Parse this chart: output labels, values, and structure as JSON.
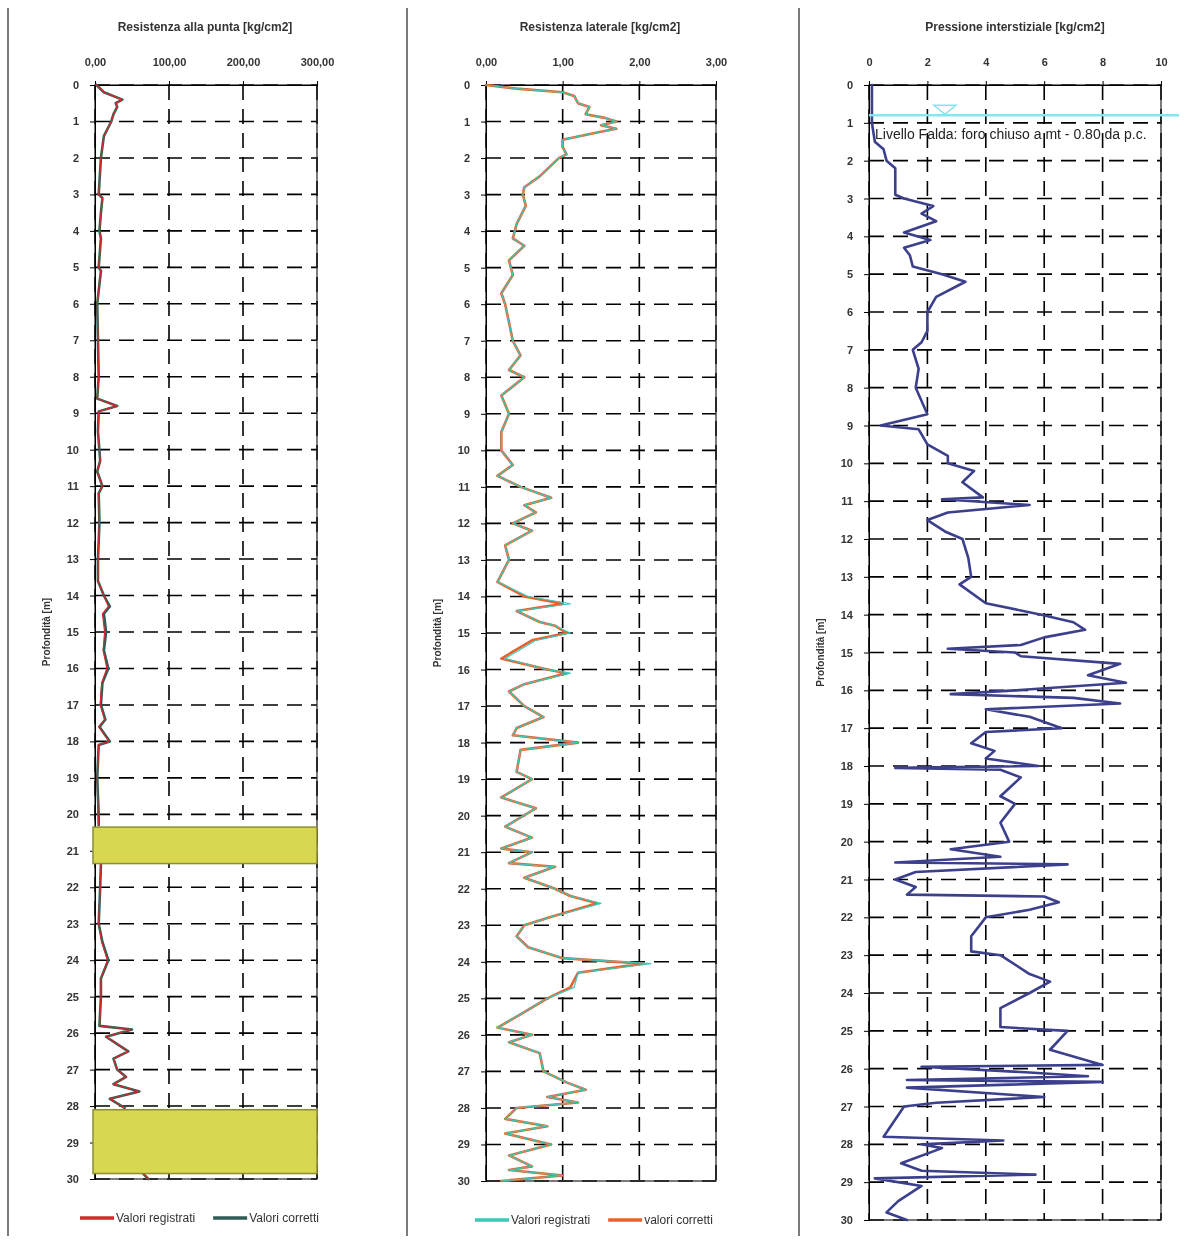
{
  "chart_data": [
    {
      "type": "line",
      "title": "Resistenza alla punta [kg/cm2]",
      "ylabel": "Profondità [m]",
      "xlim": [
        0,
        300
      ],
      "xticks": [
        {
          "value": 0,
          "label": "0,00"
        },
        {
          "value": 100,
          "label": "100,00"
        },
        {
          "value": 200,
          "label": "200,00"
        },
        {
          "value": 300,
          "label": "300,00"
        }
      ],
      "ylim": [
        30,
        0
      ],
      "yticks": [
        0,
        1,
        2,
        3,
        4,
        5,
        6,
        7,
        8,
        9,
        10,
        11,
        12,
        13,
        14,
        15,
        16,
        17,
        18,
        19,
        20,
        21,
        22,
        23,
        24,
        25,
        26,
        27,
        28,
        29,
        30
      ],
      "grid": true,
      "legend": "bottom",
      "marker": "none",
      "line_style": "solid",
      "bands": [
        {
          "axis": "y",
          "from": 20.35,
          "to": 21.35,
          "color": "#d8d850"
        },
        {
          "axis": "y",
          "from": 28.1,
          "to": 29.85,
          "color": "#d8d850"
        }
      ],
      "series": [
        {
          "name": "Valori registrati",
          "color": "#d42a2a",
          "x": [
            2,
            12,
            37,
            28,
            30,
            25,
            22,
            12,
            8,
            5,
            10,
            8,
            6,
            8,
            5,
            8,
            3,
            4,
            5,
            3,
            30,
            5,
            4,
            7,
            3,
            10,
            5,
            6,
            4,
            4,
            12,
            18,
            10,
            13,
            11,
            16,
            9,
            7,
            13,
            5,
            19,
            5,
            3,
            4,
            5,
            null,
            8,
            7,
            5,
            9,
            17,
            8,
            8,
            6,
            49,
            15,
            30,
            45,
            25,
            30,
            42,
            25,
            60,
            20,
            40,
            null,
            65,
            72
          ],
          "values": [
            0,
            0.2,
            0.4,
            0.5,
            0.6,
            0.8,
            1.0,
            1.4,
            2,
            3,
            3.1,
            3.5,
            4,
            4.2,
            5,
            5.1,
            6,
            7,
            8,
            8.6,
            8.8,
            8.95,
            9.5,
            10.3,
            10.6,
            11,
            11.2,
            12,
            13,
            13.6,
            14,
            14.3,
            14.5,
            15,
            15.5,
            16,
            16.4,
            17,
            17.4,
            17.6,
            18,
            18.1,
            19,
            20,
            20.3,
            null,
            21.35,
            22,
            23,
            23.5,
            24,
            24.5,
            25,
            25.8,
            25.9,
            26.1,
            26.3,
            26.5,
            26.7,
            27,
            27.2,
            27.4,
            27.6,
            27.8,
            28.05,
            null,
            29.85,
            30
          ]
        },
        {
          "name": "Valori corretti",
          "color": "#2e5d57",
          "x": [
            2,
            12,
            37,
            28,
            30,
            25,
            22,
            12,
            8,
            5,
            10,
            8,
            6,
            8,
            5,
            8,
            3,
            4,
            5,
            3,
            30,
            5,
            4,
            7,
            3,
            10,
            5,
            6,
            4,
            4,
            12,
            20,
            12,
            15,
            12,
            18,
            10,
            8,
            14,
            6,
            20,
            5,
            3,
            5,
            5,
            null,
            8,
            7,
            5,
            10,
            18,
            8,
            8,
            6,
            50,
            15,
            30,
            45,
            25,
            30,
            42,
            25,
            60,
            20,
            40,
            null,
            65,
            72
          ],
          "values": [
            0,
            0.2,
            0.4,
            0.5,
            0.6,
            0.8,
            1.0,
            1.4,
            2,
            3,
            3.1,
            3.5,
            4,
            4.2,
            5,
            5.1,
            6,
            7,
            8,
            8.6,
            8.8,
            8.95,
            9.5,
            10.3,
            10.6,
            11,
            11.2,
            12,
            13,
            13.6,
            14,
            14.3,
            14.5,
            15,
            15.5,
            16,
            16.4,
            17,
            17.4,
            17.6,
            18,
            18.1,
            19,
            20,
            20.3,
            null,
            21.35,
            22,
            23,
            23.5,
            24,
            24.5,
            25,
            25.8,
            25.9,
            26.1,
            26.3,
            26.5,
            26.7,
            27,
            27.2,
            27.4,
            27.6,
            27.8,
            28.05,
            null,
            29.85,
            30
          ]
        }
      ]
    },
    {
      "type": "line",
      "title": "Resistenza laterale [kg/cm2]",
      "ylabel": "Profondità [m]",
      "xlim": [
        0,
        3
      ],
      "xticks": [
        {
          "value": 0,
          "label": "0,00"
        },
        {
          "value": 1,
          "label": "1,00"
        },
        {
          "value": 2,
          "label": "2,00"
        },
        {
          "value": 3,
          "label": "3,00"
        }
      ],
      "ylim": [
        30,
        0
      ],
      "yticks": [
        0,
        1,
        2,
        3,
        4,
        5,
        6,
        7,
        8,
        9,
        10,
        11,
        12,
        13,
        14,
        15,
        16,
        17,
        18,
        19,
        20,
        21,
        22,
        23,
        24,
        25,
        26,
        27,
        28,
        29,
        30
      ],
      "grid": true,
      "legend": "bottom",
      "marker": "none",
      "line_style": "solid",
      "series": [
        {
          "name": "Valori registrati",
          "color": "#3cc8b8",
          "x": [
            0,
            0.4,
            1.0,
            1.15,
            1.2,
            1.35,
            1.3,
            1.55,
            1.7,
            1.5,
            1.7,
            1.45,
            1.0,
            1.0,
            1.05,
            0.95,
            0.7,
            0.5,
            0.48,
            0.52,
            0.4,
            0.35,
            0.5,
            0.3,
            0.35,
            0.2,
            0.25,
            0.3,
            0.35,
            0.45,
            0.3,
            0.5,
            0.2,
            0.3,
            0.2,
            0.2,
            0.35,
            0.15,
            0.45,
            0.85,
            0.5,
            0.65,
            0.35,
            0.6,
            0.25,
            0.3,
            0.15,
            0.55,
            1.1,
            0.4,
            0.7,
            0.9,
            1.1,
            0.65,
            0.25,
            0.8,
            1.1,
            0.5,
            0.3,
            0.5,
            0.75,
            0.4,
            0.35,
            1.2,
            0.45,
            0.4,
            0.6,
            0.2,
            0.65,
            0.25,
            0.6,
            0.2,
            0.6,
            0.3,
            0.9,
            0.5,
            0.9,
            1.1,
            1.5,
            0.8,
            0.5,
            0.4,
            0.55,
            1.0,
            2.15,
            1.2,
            1.15,
            0.8,
            0.4,
            0.15,
            0.6,
            0.3,
            0.7,
            0.75,
            1.05,
            1.3,
            0.8,
            1.2,
            0.4,
            0.25,
            0.8,
            0.25,
            0.85,
            0.3,
            0.6,
            0.3,
            1.0,
            0.2
          ],
          "values": [
            0,
            0.1,
            0.2,
            0.3,
            0.5,
            0.6,
            0.8,
            0.9,
            1.0,
            1.1,
            1.2,
            1.3,
            1.5,
            1.7,
            1.9,
            2,
            2.5,
            2.8,
            3,
            3.3,
            3.8,
            4.2,
            4.4,
            4.8,
            5.2,
            5.7,
            6,
            6.5,
            7,
            7.4,
            7.8,
            8,
            8.5,
            9,
            9.5,
            10,
            10.4,
            10.7,
            11,
            11.3,
            11.5,
            11.7,
            12,
            12.2,
            12.6,
            13,
            13.6,
            14,
            14.2,
            14.4,
            14.7,
            14.8,
            15,
            15.2,
            15.7,
            16,
            16.1,
            16.4,
            16.6,
            17,
            17.3,
            17.6,
            17.8,
            18,
            18.2,
            18.8,
            19,
            19.5,
            19.8,
            20.3,
            20.6,
            20.9,
            21,
            21.3,
            21.4,
            21.7,
            22,
            22.2,
            22.4,
            22.8,
            23,
            23.3,
            23.6,
            23.9,
            24.05,
            24.3,
            24.7,
            25,
            25.5,
            25.8,
            26,
            26.2,
            26.5,
            27,
            27.3,
            27.5,
            27.7,
            27.85,
            28,
            28.3,
            28.5,
            28.7,
            29,
            29.3,
            29.6,
            29.7,
            29.85,
            30
          ]
        },
        {
          "name": "valori corretti",
          "color": "#e8602c",
          "x": [
            0,
            0.4,
            1.0,
            1.15,
            1.2,
            1.35,
            1.3,
            1.55,
            1.7,
            1.5,
            1.7,
            1.45,
            1.0,
            1.0,
            1.05,
            0.95,
            0.7,
            0.5,
            0.48,
            0.52,
            0.4,
            0.35,
            0.5,
            0.3,
            0.35,
            0.2,
            0.25,
            0.3,
            0.35,
            0.45,
            0.3,
            0.5,
            0.2,
            0.3,
            0.2,
            0.2,
            0.35,
            0.15,
            0.45,
            0.85,
            0.5,
            0.65,
            0.35,
            0.6,
            0.25,
            0.3,
            0.15,
            0.5,
            1.0,
            0.4,
            0.7,
            0.9,
            1.05,
            0.6,
            0.2,
            0.8,
            1.05,
            0.5,
            0.3,
            0.5,
            0.75,
            0.4,
            0.35,
            1.2,
            0.45,
            0.4,
            0.6,
            0.2,
            0.65,
            0.25,
            0.6,
            0.2,
            0.6,
            0.3,
            0.9,
            0.5,
            0.9,
            1.1,
            1.45,
            0.8,
            0.5,
            0.4,
            0.55,
            1.0,
            2.05,
            1.2,
            1.1,
            0.8,
            0.4,
            0.15,
            0.6,
            0.3,
            0.7,
            0.75,
            1.05,
            1.3,
            0.8,
            1.2,
            0.4,
            0.25,
            0.8,
            0.25,
            0.85,
            0.3,
            0.6,
            0.3,
            1.0,
            0.2
          ],
          "values": [
            0,
            0.1,
            0.2,
            0.3,
            0.5,
            0.6,
            0.8,
            0.9,
            1.0,
            1.1,
            1.2,
            1.3,
            1.5,
            1.7,
            1.9,
            2,
            2.5,
            2.8,
            3,
            3.3,
            3.8,
            4.2,
            4.4,
            4.8,
            5.2,
            5.7,
            6,
            6.5,
            7,
            7.4,
            7.8,
            8,
            8.5,
            9,
            9.5,
            10,
            10.4,
            10.7,
            11,
            11.3,
            11.5,
            11.7,
            12,
            12.2,
            12.6,
            13,
            13.6,
            14,
            14.2,
            14.4,
            14.7,
            14.8,
            15,
            15.2,
            15.7,
            16,
            16.1,
            16.4,
            16.6,
            17,
            17.3,
            17.6,
            17.8,
            18,
            18.2,
            18.8,
            19,
            19.5,
            19.8,
            20.3,
            20.6,
            20.9,
            21,
            21.3,
            21.4,
            21.7,
            22,
            22.2,
            22.4,
            22.8,
            23,
            23.3,
            23.6,
            23.9,
            24.05,
            24.3,
            24.7,
            25,
            25.5,
            25.8,
            26,
            26.2,
            26.5,
            27,
            27.3,
            27.5,
            27.7,
            27.85,
            28,
            28.3,
            28.5,
            28.7,
            29,
            29.3,
            29.6,
            29.7,
            29.85,
            30
          ]
        }
      ]
    },
    {
      "type": "line",
      "title": "Pressione interstiziale [kg/cm2]",
      "ylabel": "Profondità [m]",
      "xlim": [
        0,
        10
      ],
      "xticks": [
        0,
        2,
        4,
        6,
        8,
        10
      ],
      "ylim": [
        30,
        0
      ],
      "yticks": [
        0,
        1,
        2,
        3,
        4,
        5,
        6,
        7,
        8,
        9,
        10,
        11,
        12,
        13,
        14,
        15,
        16,
        17,
        18,
        19,
        20,
        21,
        22,
        23,
        24,
        25,
        26,
        27,
        28,
        29,
        30
      ],
      "grid": true,
      "marker": "none",
      "line_style": "solid",
      "ref_lines": [
        {
          "axis": "y",
          "value": 0.8,
          "label": "Livello Falda: foro chiuso a mt - 0.80 da p.c.",
          "color": "#7fe8f0"
        }
      ],
      "series": [
        {
          "color": "#3c3f8c",
          "x": [
            0.1,
            0.1,
            0.2,
            0.5,
            0.6,
            0.9,
            0.9,
            1.2,
            2.2,
            1.8,
            2.3,
            1.2,
            2.1,
            1.2,
            1.4,
            1.5,
            2.5,
            3.3,
            2.3,
            2.0,
            2.0,
            1.8,
            1.5,
            1.7,
            1.6,
            2.0,
            0.4,
            1.7,
            2.0,
            2.7,
            2.7,
            3.6,
            3.2,
            3.9,
            2.5,
            5.5,
            2.7,
            2.0,
            2.6,
            3.2,
            3.4,
            3.5,
            3.1,
            4.0,
            5.9,
            7.0,
            7.4,
            6.0,
            5.2,
            2.7,
            5.0,
            5.2,
            8.6,
            7.5,
            8.8,
            5.0,
            2.8,
            7.0,
            8.6,
            4.0,
            5.5,
            6.6,
            4.0,
            3.5,
            4.3,
            4.0,
            5.8,
            0.9,
            4.5,
            5.2,
            4.5,
            5.0,
            4.5,
            4.8,
            2.8,
            4.5,
            0.9,
            6.8,
            1.6,
            0.9,
            1.6,
            1.3,
            6.0,
            6.5,
            5.5,
            4.0,
            3.5,
            3.5,
            4.5,
            5.5,
            6.2,
            5.5,
            4.5,
            4.5,
            6.8,
            6.2,
            8.0,
            1.8,
            5.5,
            7.5,
            1.3,
            8.0,
            1.3,
            6.0,
            2.3,
            1.2,
            0.5,
            4.6,
            1.8,
            2.5,
            1.1,
            1.8,
            5.7,
            0.2,
            1.8,
            1.0,
            0.6,
            1.3
          ],
          "values": [
            0,
            1,
            1.5,
            1.7,
            2,
            2.2,
            2.9,
            3,
            3.2,
            3.4,
            3.6,
            3.9,
            4.1,
            4.3,
            4.5,
            4.8,
            5,
            5.2,
            5.6,
            6,
            6.5,
            6.8,
            7,
            7.5,
            8,
            8.7,
            9,
            9.1,
            9.5,
            9.8,
            10,
            10.2,
            10.5,
            10.9,
            10.95,
            11.1,
            11.3,
            11.5,
            11.8,
            12,
            12.5,
            13,
            13.2,
            13.7,
            14,
            14.2,
            14.4,
            14.6,
            14.8,
            14.9,
            15,
            15.1,
            15.3,
            15.6,
            15.8,
            16,
            16.1,
            16.2,
            16.35,
            16.5,
            16.7,
            17,
            17.1,
            17.4,
            17.6,
            17.8,
            18,
            18.05,
            18.1,
            18.3,
            18.8,
            19,
            19.5,
            20,
            20.2,
            20.4,
            20.55,
            20.6,
            20.8,
            21,
            21.2,
            21.4,
            21.45,
            21.6,
            21.8,
            22,
            22.5,
            22.9,
            23,
            23.5,
            23.7,
            24,
            24.4,
            24.9,
            25,
            25.5,
            25.9,
            25.95,
            26.1,
            26.2,
            26.3,
            26.35,
            26.5,
            26.75,
            26.9,
            27,
            27.8,
            27.9,
            28,
            28.1,
            28.5,
            28.7,
            28.8,
            28.9,
            29.1,
            29.5,
            29.8,
            30
          ]
        }
      ]
    }
  ]
}
